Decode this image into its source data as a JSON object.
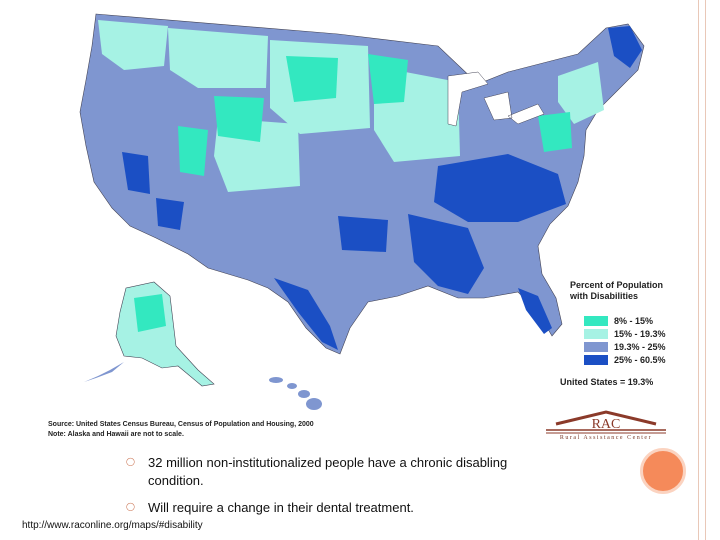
{
  "map": {
    "legend": {
      "title": "Percent of Population with Disabilities",
      "items": [
        {
          "label": "8% - 15%",
          "color": "#33e8c0"
        },
        {
          "label": "15% - 19.3%",
          "color": "#a6f2e4"
        },
        {
          "label": "19.3% - 25%",
          "color": "#7f96d0"
        },
        {
          "label": "25% - 60.5%",
          "color": "#1b4fc4"
        }
      ]
    },
    "us_rate": "United States = 19.3%",
    "source": "Source:  United States Census Bureau, Census of Population and Housing, 2000",
    "note": "Note:  Alaska and Hawaii are not to scale.",
    "logo": {
      "mark": "RAC",
      "text": "Rural Assistance Center"
    }
  },
  "slide": {
    "bullets": [
      {
        "text": "32 million non-institutionalized people have a chronic disabling condition."
      },
      {
        "text": "Will require a change in their dental treatment."
      }
    ],
    "url": "http://www.raconline.org/maps/#disability"
  }
}
